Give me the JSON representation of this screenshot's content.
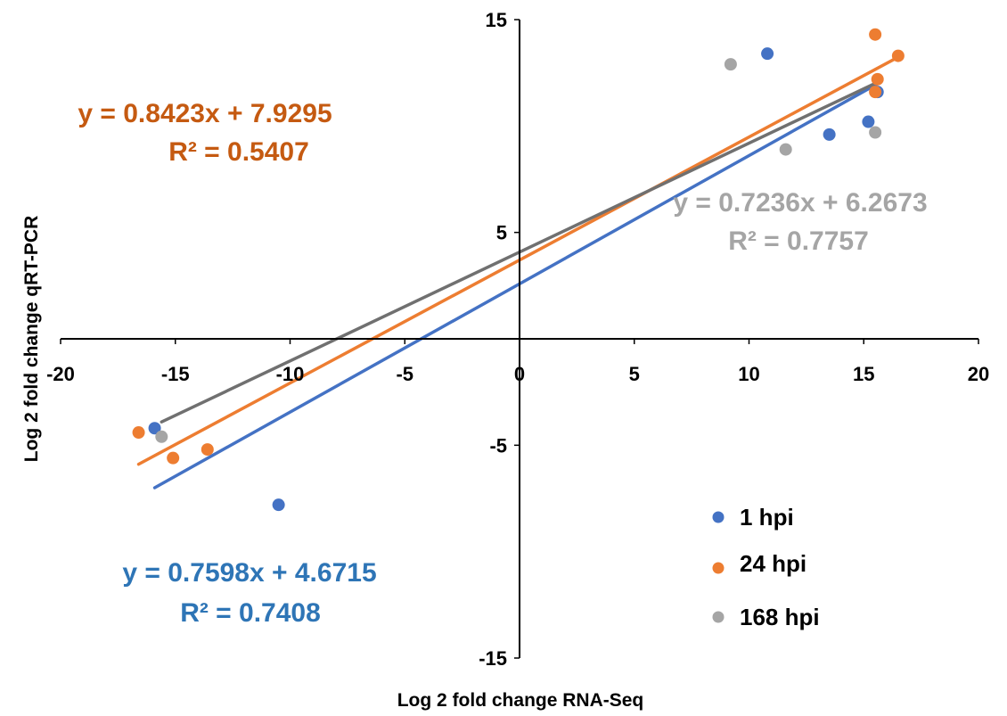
{
  "chart_data": {
    "type": "scatter",
    "title": "",
    "xlabel": "Log 2 fold change RNA-Seq",
    "ylabel": "Log 2 fold change qRT-PCR",
    "xlim": [
      -20,
      20
    ],
    "ylim": [
      -15,
      15
    ],
    "x_ticks": [
      "-20",
      "-15",
      "-10",
      "-5",
      "0",
      "5",
      "10",
      "15",
      "20"
    ],
    "y_ticks": [
      "-15",
      "-5",
      "5",
      "15"
    ],
    "grid": false,
    "legend_position": "bottom-right",
    "series": [
      {
        "name": "1 hpi",
        "color": "#4472C4",
        "points": [
          [
            -15.9,
            -4.2
          ],
          [
            -10.5,
            -7.8
          ],
          [
            10.8,
            13.4
          ],
          [
            13.5,
            9.6
          ],
          [
            15.2,
            10.2
          ],
          [
            15.6,
            11.6
          ]
        ],
        "trendline": {
          "x_range": [
            -15.9,
            15.6
          ]
        }
      },
      {
        "name": "24 hpi",
        "color": "#ED7D31",
        "points": [
          [
            -16.6,
            -4.4
          ],
          [
            -15.1,
            -5.6
          ],
          [
            -13.6,
            -5.2
          ],
          [
            15.5,
            14.3
          ],
          [
            16.5,
            13.3
          ],
          [
            15.6,
            12.2
          ],
          [
            15.5,
            11.6
          ]
        ],
        "trendline": {
          "x_range": [
            -16.6,
            16.5
          ]
        }
      },
      {
        "name": "168 hpi",
        "color": "#A5A5A5",
        "points": [
          [
            -15.6,
            -4.6
          ],
          [
            9.2,
            12.9
          ],
          [
            11.6,
            8.9
          ],
          [
            15.5,
            9.7
          ]
        ],
        "trendline": {
          "x_range": [
            -15.6,
            15.5
          ]
        }
      }
    ],
    "trend_line_colors": [
      "#4472C4",
      "#ED7D31",
      "#707070"
    ],
    "annotations": [
      {
        "line1": "y = 0.8423x + 7.9295",
        "line2": "R² = 0.5407",
        "color": "#C55A11"
      },
      {
        "line1": "y = 0.7236x + 6.2673",
        "line2": "R² = 0.7757",
        "color": "#A5A5A5"
      },
      {
        "line1": "y = 0.7598x + 4.6715",
        "line2": "R² = 0.7408",
        "color": "#2E75B6"
      }
    ]
  }
}
